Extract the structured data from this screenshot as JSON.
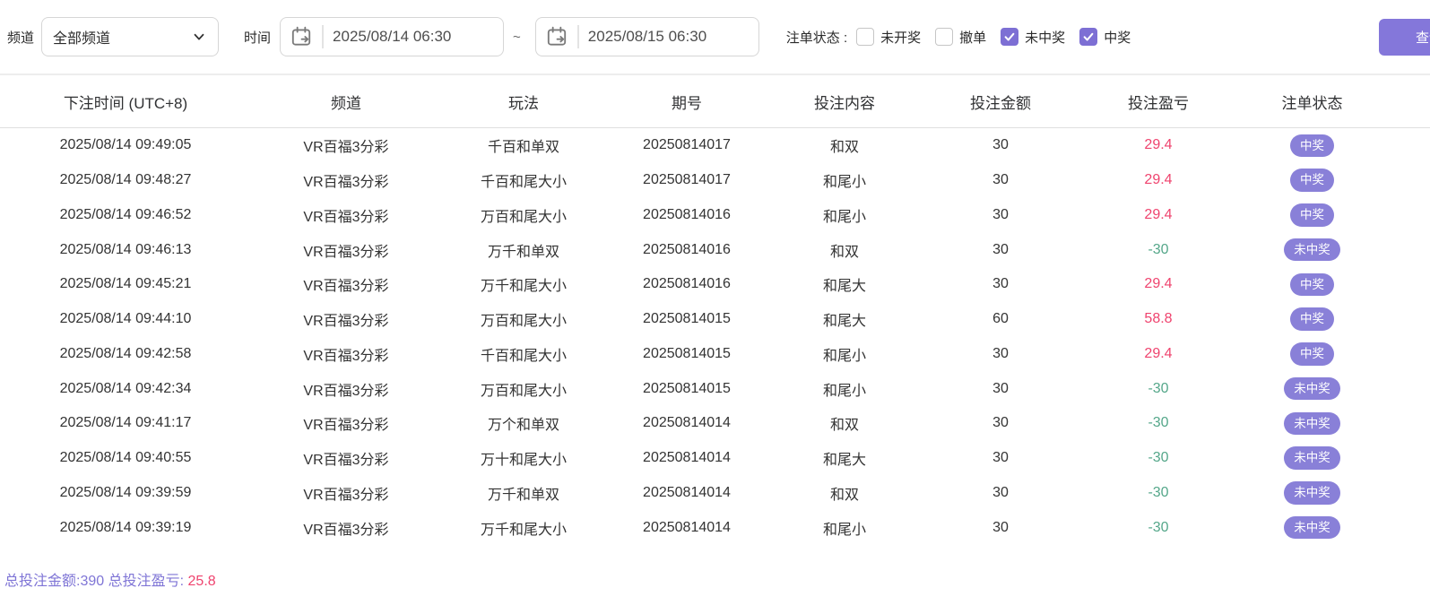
{
  "filters": {
    "channel_label": "频道",
    "channel_value": "全部频道",
    "time_label": "时间",
    "time_from": "2025/08/14 06:30",
    "time_separator": "~",
    "time_to": "2025/08/15 06:30",
    "status_label": "注单状态 :",
    "status_options": [
      {
        "label": "未开奖",
        "checked": false
      },
      {
        "label": "撤单",
        "checked": false
      },
      {
        "label": "未中奖",
        "checked": true
      },
      {
        "label": "中奖",
        "checked": true
      }
    ],
    "search_button": "查询"
  },
  "table": {
    "columns": [
      "下注时间 (UTC+8)",
      "频道",
      "玩法",
      "期号",
      "投注内容",
      "投注金额",
      "投注盈亏",
      "注单状态"
    ],
    "rows": [
      {
        "time": "2025/08/14 09:49:05",
        "channel": "VR百福3分彩",
        "play": "千百和单双",
        "period": "20250814017",
        "content": "和双",
        "amount": "30",
        "profit": "29.4",
        "profit_type": "win",
        "status": "中奖"
      },
      {
        "time": "2025/08/14 09:48:27",
        "channel": "VR百福3分彩",
        "play": "千百和尾大小",
        "period": "20250814017",
        "content": "和尾小",
        "amount": "30",
        "profit": "29.4",
        "profit_type": "win",
        "status": "中奖"
      },
      {
        "time": "2025/08/14 09:46:52",
        "channel": "VR百福3分彩",
        "play": "万百和尾大小",
        "period": "20250814016",
        "content": "和尾小",
        "amount": "30",
        "profit": "29.4",
        "profit_type": "win",
        "status": "中奖"
      },
      {
        "time": "2025/08/14 09:46:13",
        "channel": "VR百福3分彩",
        "play": "万千和单双",
        "period": "20250814016",
        "content": "和双",
        "amount": "30",
        "profit": "-30",
        "profit_type": "lose",
        "status": "未中奖"
      },
      {
        "time": "2025/08/14 09:45:21",
        "channel": "VR百福3分彩",
        "play": "万千和尾大小",
        "period": "20250814016",
        "content": "和尾大",
        "amount": "30",
        "profit": "29.4",
        "profit_type": "win",
        "status": "中奖"
      },
      {
        "time": "2025/08/14 09:44:10",
        "channel": "VR百福3分彩",
        "play": "万百和尾大小",
        "period": "20250814015",
        "content": "和尾大",
        "amount": "60",
        "profit": "58.8",
        "profit_type": "win",
        "status": "中奖"
      },
      {
        "time": "2025/08/14 09:42:58",
        "channel": "VR百福3分彩",
        "play": "千百和尾大小",
        "period": "20250814015",
        "content": "和尾小",
        "amount": "30",
        "profit": "29.4",
        "profit_type": "win",
        "status": "中奖"
      },
      {
        "time": "2025/08/14 09:42:34",
        "channel": "VR百福3分彩",
        "play": "万百和尾大小",
        "period": "20250814015",
        "content": "和尾小",
        "amount": "30",
        "profit": "-30",
        "profit_type": "lose",
        "status": "未中奖"
      },
      {
        "time": "2025/08/14 09:41:17",
        "channel": "VR百福3分彩",
        "play": "万个和单双",
        "period": "20250814014",
        "content": "和双",
        "amount": "30",
        "profit": "-30",
        "profit_type": "lose",
        "status": "未中奖"
      },
      {
        "time": "2025/08/14 09:40:55",
        "channel": "VR百福3分彩",
        "play": "万十和尾大小",
        "period": "20250814014",
        "content": "和尾大",
        "amount": "30",
        "profit": "-30",
        "profit_type": "lose",
        "status": "未中奖"
      },
      {
        "time": "2025/08/14 09:39:59",
        "channel": "VR百福3分彩",
        "play": "万千和单双",
        "period": "20250814014",
        "content": "和双",
        "amount": "30",
        "profit": "-30",
        "profit_type": "lose",
        "status": "未中奖"
      },
      {
        "time": "2025/08/14 09:39:19",
        "channel": "VR百福3分彩",
        "play": "万千和尾大小",
        "period": "20250814014",
        "content": "和尾小",
        "amount": "30",
        "profit": "-30",
        "profit_type": "lose",
        "status": "未中奖"
      }
    ]
  },
  "summary": {
    "total_amount_label": "总投注金额:",
    "total_amount": "390",
    "total_profit_label": "总投注盈亏:",
    "total_profit": "25.8"
  },
  "colors": {
    "accent_purple": "#8477da",
    "badge_purple": "#8980d8",
    "checkbox_purple": "#7d6fd4",
    "profit_positive": "#ef436e",
    "profit_negative": "#55a78a"
  }
}
